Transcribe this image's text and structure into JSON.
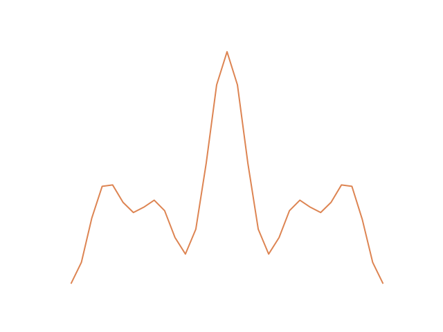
{
  "chart_data": {
    "type": "line",
    "x": [
      0,
      1,
      2,
      3,
      4,
      5,
      6,
      7,
      8,
      9,
      10,
      11,
      12,
      13,
      14,
      15,
      16,
      17,
      18,
      19,
      20,
      21,
      22,
      23,
      24,
      25,
      26,
      27,
      28,
      29,
      30
    ],
    "series": [
      {
        "color": "#dd8452",
        "values": [
          0,
          0.92,
          2.83,
          4.2,
          4.26,
          3.51,
          3.07,
          3.3,
          3.6,
          3.15,
          1.99,
          1.28,
          2.35,
          5.2,
          8.57,
          10,
          8.57,
          5.2,
          2.35,
          1.28,
          1.99,
          3.15,
          3.6,
          3.3,
          3.07,
          3.51,
          4.26,
          4.2,
          2.77,
          0.92,
          0
        ]
      }
    ],
    "xlim": [
      -1.5,
      31.5
    ],
    "ylim": [
      -0.5,
      10.5
    ],
    "axis": false
  }
}
